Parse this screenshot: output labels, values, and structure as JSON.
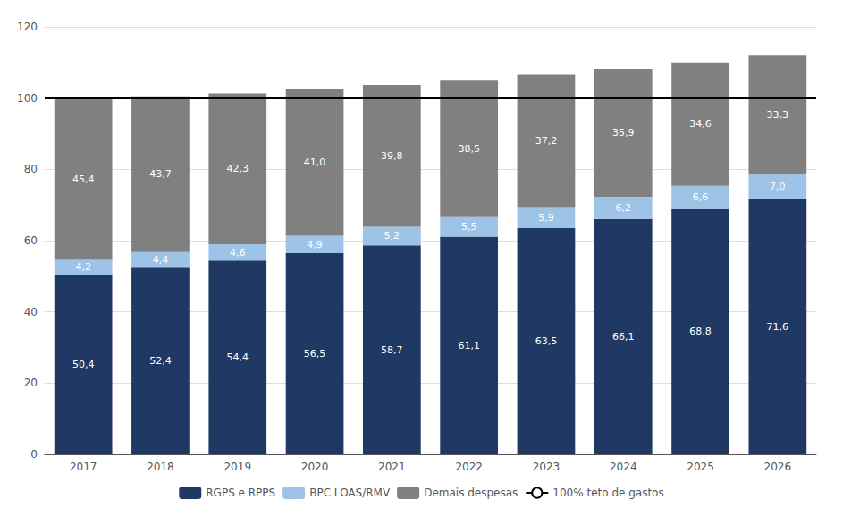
{
  "chart_data": {
    "type": "bar",
    "stacked": true,
    "categories": [
      "2017",
      "2018",
      "2019",
      "2020",
      "2021",
      "2022",
      "2023",
      "2024",
      "2025",
      "2026"
    ],
    "series": [
      {
        "name": "RGPS e RPPS",
        "color": "#1f3864",
        "values": [
          50.4,
          52.4,
          54.4,
          56.5,
          58.7,
          61.1,
          63.5,
          66.1,
          68.8,
          71.6
        ],
        "value_labels": [
          "50,4",
          "52,4",
          "54,4",
          "56,5",
          "58,7",
          "61,1",
          "63,5",
          "66,1",
          "68,8",
          "71,6"
        ]
      },
      {
        "name": "BPC LOAS/RMV",
        "color": "#9dc3e6",
        "values": [
          4.2,
          4.4,
          4.6,
          4.9,
          5.2,
          5.5,
          5.9,
          6.2,
          6.6,
          7.0
        ],
        "value_labels": [
          "4,2",
          "4,4",
          "4,6",
          "4,9",
          "5,2",
          "5,5",
          "5,9",
          "6,2",
          "6,6",
          "7,0"
        ]
      },
      {
        "name": "Demais despesas",
        "color": "#808080",
        "values": [
          45.4,
          43.7,
          42.3,
          41.0,
          39.8,
          38.5,
          37.2,
          35.9,
          34.6,
          33.3
        ],
        "value_labels": [
          "45,4",
          "43,7",
          "42,3",
          "41,0",
          "39,8",
          "38,5",
          "37,2",
          "35,9",
          "34,6",
          "33,3"
        ]
      },
      {
        "name": "100% teto de gastos",
        "type": "line",
        "color": "#000000",
        "value": 100
      }
    ],
    "ylim": [
      0,
      120
    ],
    "yticks": [
      0,
      20,
      40,
      60,
      80,
      100,
      120
    ],
    "grid": true,
    "data_labels": true,
    "legend": "bottom"
  }
}
